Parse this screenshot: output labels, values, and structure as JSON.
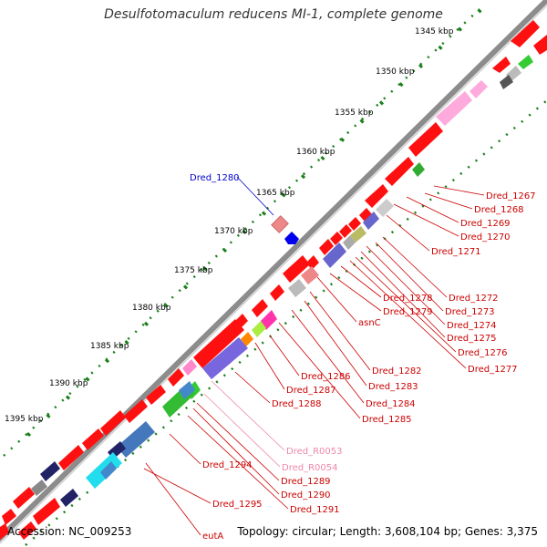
{
  "title": "Desulfotomaculum reducens MI-1, complete genome",
  "footer": {
    "accession": "Accession: NC_009253",
    "summary": "Topology: circular; Length: 3,608,104 bp; Genes: 3,375"
  },
  "colors": {
    "backbone": "#808080",
    "gene_red": "#ff0000",
    "label_red": "#cc0000",
    "label_blue": "#0000cc",
    "label_pink": "#ee88aa",
    "tick_green": "#1a7f1a"
  },
  "scale_labels": [
    {
      "text": "1345 kbp"
    },
    {
      "text": "1350 kbp"
    },
    {
      "text": "1355 kbp"
    },
    {
      "text": "1360 kbp"
    },
    {
      "text": "1365 kbp"
    },
    {
      "text": "1370 kbp"
    },
    {
      "text": "1375 kbp"
    },
    {
      "text": "1380 kbp"
    },
    {
      "text": "1385 kbp"
    },
    {
      "text": "1390 kbp"
    },
    {
      "text": "1395 kbp"
    }
  ],
  "gene_labels": [
    {
      "text": "Dred_1267",
      "color": "red"
    },
    {
      "text": "Dred_1268",
      "color": "red"
    },
    {
      "text": "Dred_1269",
      "color": "red"
    },
    {
      "text": "Dred_1270",
      "color": "red"
    },
    {
      "text": "Dred_1271",
      "color": "red"
    },
    {
      "text": "Dred_1272",
      "color": "red"
    },
    {
      "text": "Dred_1273",
      "color": "red"
    },
    {
      "text": "Dred_1274",
      "color": "red"
    },
    {
      "text": "Dred_1275",
      "color": "red"
    },
    {
      "text": "Dred_1276",
      "color": "red"
    },
    {
      "text": "Dred_1277",
      "color": "red"
    },
    {
      "text": "Dred_1278",
      "color": "red"
    },
    {
      "text": "Dred_1279",
      "color": "red"
    },
    {
      "text": "asnC",
      "color": "red"
    },
    {
      "text": "Dred_1282",
      "color": "red"
    },
    {
      "text": "Dred_1283",
      "color": "red"
    },
    {
      "text": "Dred_1284",
      "color": "red"
    },
    {
      "text": "Dred_1285",
      "color": "red"
    },
    {
      "text": "Dred_1286",
      "color": "red"
    },
    {
      "text": "Dred_1287",
      "color": "red"
    },
    {
      "text": "Dred_1288",
      "color": "red"
    },
    {
      "text": "Dred_R0053",
      "color": "pink"
    },
    {
      "text": "Dred_R0054",
      "color": "pink"
    },
    {
      "text": "Dred_1289",
      "color": "red"
    },
    {
      "text": "Dred_1290",
      "color": "red"
    },
    {
      "text": "Dred_1291",
      "color": "red"
    },
    {
      "text": "Dred_1294",
      "color": "red"
    },
    {
      "text": "Dred_1295",
      "color": "red"
    },
    {
      "text": "eutA",
      "color": "red"
    },
    {
      "text": "Dred_1280",
      "color": "blue"
    }
  ]
}
